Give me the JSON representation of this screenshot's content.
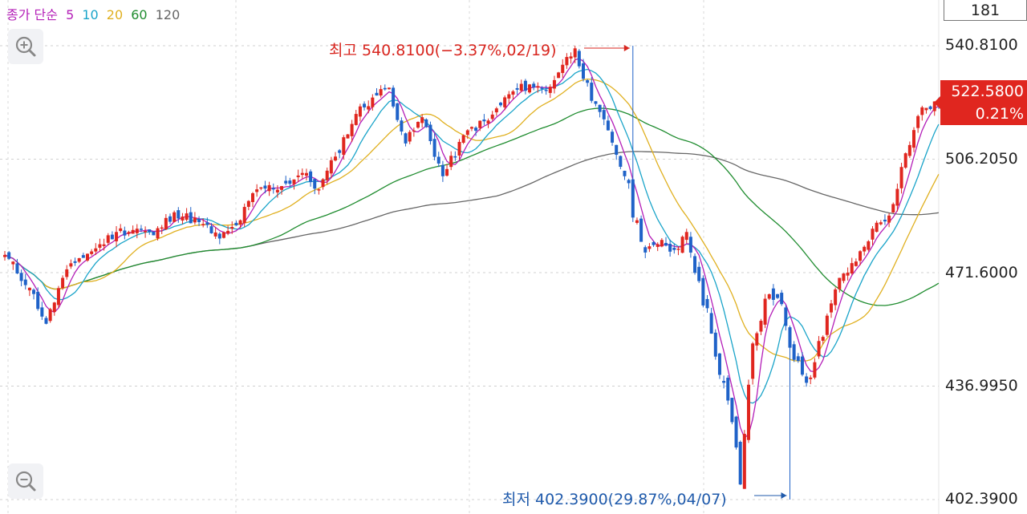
{
  "legend": {
    "type_label": "종가 단순",
    "periods": [
      {
        "label": "5",
        "color": "#b41fb8"
      },
      {
        "label": "10",
        "color": "#1aa4c9"
      },
      {
        "label": "20",
        "color": "#e0b020"
      },
      {
        "label": "60",
        "color": "#1f8c2f"
      },
      {
        "label": "120",
        "color": "#666666"
      }
    ]
  },
  "controls": {
    "zoom_in_icon": "zoom-in-icon",
    "zoom_out_icon": "zoom-out-icon",
    "count": "181"
  },
  "current": {
    "price": "522.5800",
    "change": "0.21%",
    "color": "#e0261f"
  },
  "annotations": {
    "high": "최고 540.8100(−3.37%,02/19)",
    "low": "최저 402.3900(29.87%,04/07)",
    "high_color": "#d8261f",
    "low_color": "#1f5aab"
  },
  "chart_data": {
    "type": "candlestick",
    "candle_count": 181,
    "y_tick_labels": [
      "540.8100",
      "506.2050",
      "471.6000",
      "436.9950",
      "402.3900"
    ],
    "y_ticks": [
      540.81,
      506.205,
      471.6,
      436.995,
      402.39
    ],
    "ylim": [
      402.39,
      540.81
    ],
    "grid": "dashed horizontal and vertical",
    "up_color": "#e0261f",
    "down_color": "#1f62c8",
    "high": {
      "value": 540.81,
      "date": "02/19"
    },
    "low": {
      "value": 402.39,
      "date": "04/07"
    },
    "last_close": 522.58,
    "close_anchors": [
      [
        0,
        477
      ],
      [
        6,
        467
      ],
      [
        10,
        456
      ],
      [
        14,
        470
      ],
      [
        18,
        476
      ],
      [
        22,
        479
      ],
      [
        27,
        484
      ],
      [
        32,
        485
      ],
      [
        36,
        483
      ],
      [
        41,
        490
      ],
      [
        47,
        487
      ],
      [
        52,
        482
      ],
      [
        56,
        486
      ],
      [
        61,
        497
      ],
      [
        67,
        498
      ],
      [
        72,
        502
      ],
      [
        76,
        497
      ],
      [
        80,
        507
      ],
      [
        85,
        520
      ],
      [
        89,
        525
      ],
      [
        93,
        528
      ],
      [
        97,
        511
      ],
      [
        101,
        519
      ],
      [
        106,
        501
      ],
      [
        112,
        515
      ],
      [
        117,
        518
      ],
      [
        122,
        526
      ],
      [
        127,
        529
      ],
      [
        131,
        527
      ],
      [
        135,
        535
      ],
      [
        138,
        540
      ],
      [
        142,
        524
      ],
      [
        146,
        515
      ],
      [
        150,
        501
      ],
      [
        154,
        481
      ],
      [
        157,
        480
      ],
      [
        161,
        478
      ],
      [
        165,
        484
      ],
      [
        168,
        469
      ],
      [
        171,
        453
      ],
      [
        174,
        438
      ],
      [
        176,
        426
      ],
      [
        178,
        407
      ],
      [
        181,
        450
      ],
      [
        185,
        465
      ],
      [
        188,
        462
      ],
      [
        191,
        445
      ],
      [
        194,
        438
      ],
      [
        198,
        452
      ],
      [
        202,
        470
      ],
      [
        206,
        475
      ],
      [
        210,
        485
      ],
      [
        214,
        489
      ],
      [
        218,
        508
      ],
      [
        222,
        522
      ],
      [
        226,
        522.58
      ]
    ]
  }
}
